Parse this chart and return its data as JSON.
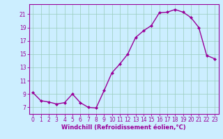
{
  "x": [
    0,
    1,
    2,
    3,
    4,
    5,
    6,
    7,
    8,
    9,
    10,
    11,
    12,
    13,
    14,
    15,
    16,
    17,
    18,
    19,
    20,
    21,
    22,
    23
  ],
  "y": [
    9.2,
    8.0,
    7.8,
    7.5,
    7.7,
    9.0,
    7.7,
    7.0,
    6.9,
    9.5,
    12.2,
    13.5,
    15.0,
    17.5,
    18.5,
    19.3,
    21.2,
    21.3,
    21.7,
    21.3,
    20.5,
    19.0,
    14.8,
    14.3
  ],
  "line_color": "#990099",
  "marker": "D",
  "marker_size": 2.0,
  "linewidth": 1.0,
  "xlabel": "Windchill (Refroidissement éolien,°C)",
  "xlabel_fontsize": 6,
  "ytick_labels": [
    "7",
    "9",
    "11",
    "13",
    "15",
    "17",
    "19",
    "21"
  ],
  "ytick_vals": [
    7,
    9,
    11,
    13,
    15,
    17,
    19,
    21
  ],
  "ylim": [
    6.0,
    22.5
  ],
  "xlim": [
    -0.5,
    23.5
  ],
  "xtick_labels": [
    "0",
    "1",
    "2",
    "3",
    "4",
    "5",
    "6",
    "7",
    "8",
    "9",
    "10",
    "11",
    "12",
    "13",
    "14",
    "15",
    "16",
    "17",
    "18",
    "19",
    "20",
    "21",
    "22",
    "23"
  ],
  "bg_color": "#cceeff",
  "grid_color": "#99ccbb",
  "tick_fontsize": 5.5,
  "spine_color": "#990099"
}
